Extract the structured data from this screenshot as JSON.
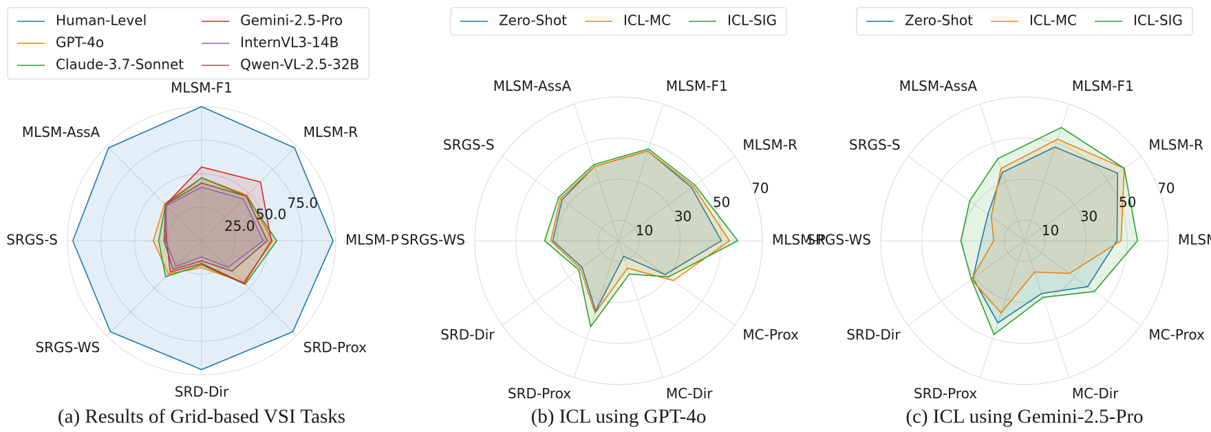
{
  "chart_data": [
    {
      "type": "radar",
      "caption": "(a) Results of Grid-based VSI Tasks",
      "categories": [
        "MLSM-F1",
        "MLSM-R",
        "MLSM-P",
        "SRD-Prox",
        "SRD-Dir",
        "SRGS-WS",
        "SRGS-S",
        "MLSM-AssA"
      ],
      "theta_offset": 90,
      "direction": "clockwise",
      "rlim": [
        0,
        100
      ],
      "rticks": [
        {
          "value": 25,
          "label": "25.0"
        },
        {
          "value": 50,
          "label": "50.0"
        },
        {
          "value": 75,
          "label": "75.0"
        }
      ],
      "grid": true,
      "legend": "upper left",
      "legend_columns": 2,
      "series": [
        {
          "name": "Human-Level",
          "color": "#1f77b4",
          "values": [
            100,
            98,
            98,
            96,
            96,
            96,
            96,
            98
          ]
        },
        {
          "name": "GPT-4o",
          "color": "#ff7f0e",
          "values": [
            47,
            48,
            53,
            44,
            20,
            35,
            36,
            39
          ]
        },
        {
          "name": "Claude-3.7-Sonnet",
          "color": "#2ca02c",
          "values": [
            47,
            47,
            56,
            46,
            18,
            38,
            32,
            38
          ]
        },
        {
          "name": "Gemini-2.5-Pro",
          "color": "#d62728",
          "values": [
            55,
            62,
            52,
            45,
            17,
            33,
            26,
            38
          ]
        },
        {
          "name": "InternVL3-14B",
          "color": "#9467bd",
          "values": [
            40,
            44,
            46,
            28,
            12,
            27,
            27,
            37
          ]
        },
        {
          "name": "Qwen-VL-2.5-32B",
          "color": "#8c564b",
          "values": [
            43,
            47,
            49,
            32,
            15,
            30,
            28,
            38
          ]
        }
      ]
    },
    {
      "type": "radar",
      "caption": "(b) ICL using GPT-4o",
      "categories": [
        "MLSM-P",
        "MLSM-R",
        "MLSM-F1",
        "MLSM-AssA",
        "SRGS-S",
        "SRGS-WS",
        "SRD-Dir",
        "SRD-Prox",
        "MC-Dir",
        "MC-Prox"
      ],
      "theta_offset": 0,
      "direction": "counterclockwise",
      "rlim": [
        0,
        70
      ],
      "rticks": [
        10,
        30,
        50,
        70
      ],
      "grid": true,
      "legend": "upper center",
      "legend_columns": 3,
      "series": [
        {
          "name": "Zero-Shot",
          "color": "#1f77b4",
          "values": [
            50,
            44,
            46,
            38,
            34,
            32,
            22,
            36,
            8,
            28
          ]
        },
        {
          "name": "ICL-MC",
          "color": "#ff7f0e",
          "values": [
            54,
            45,
            46,
            38,
            35,
            33,
            23,
            37,
            14,
            33
          ]
        },
        {
          "name": "ICL-SIG",
          "color": "#2ca02c",
          "values": [
            58,
            46,
            47,
            39,
            36,
            36,
            24,
            44,
            17,
            30
          ]
        }
      ]
    },
    {
      "type": "radar",
      "caption": "(c) ICL using Gemini-2.5-Pro",
      "categories": [
        "MLSM-P",
        "MLSM-R",
        "MLSM-F1",
        "MLSM-AssA",
        "SRGS-S",
        "SRGS-WS",
        "SRD-Dir",
        "SRD-Prox",
        "MC-Dir",
        "MC-Prox"
      ],
      "theta_offset": 0,
      "direction": "counterclockwise",
      "rlim": [
        0,
        70
      ],
      "rticks": [
        10,
        30,
        50,
        70
      ],
      "grid": true,
      "legend": "upper center",
      "legend_columns": 3,
      "series": [
        {
          "name": "Zero-Shot",
          "color": "#1f77b4",
          "values": [
            45,
            56,
            48,
            35,
            22,
            21,
            31,
            42,
            27,
            38
          ]
        },
        {
          "name": "ICL-MC",
          "color": "#ff7f0e",
          "values": [
            47,
            60,
            52,
            37,
            20,
            15,
            32,
            37,
            16,
            27
          ]
        },
        {
          "name": "ICL-SIG",
          "color": "#2ca02c",
          "values": [
            55,
            60,
            58,
            42,
            33,
            31,
            32,
            48,
            29,
            42
          ]
        }
      ]
    }
  ]
}
